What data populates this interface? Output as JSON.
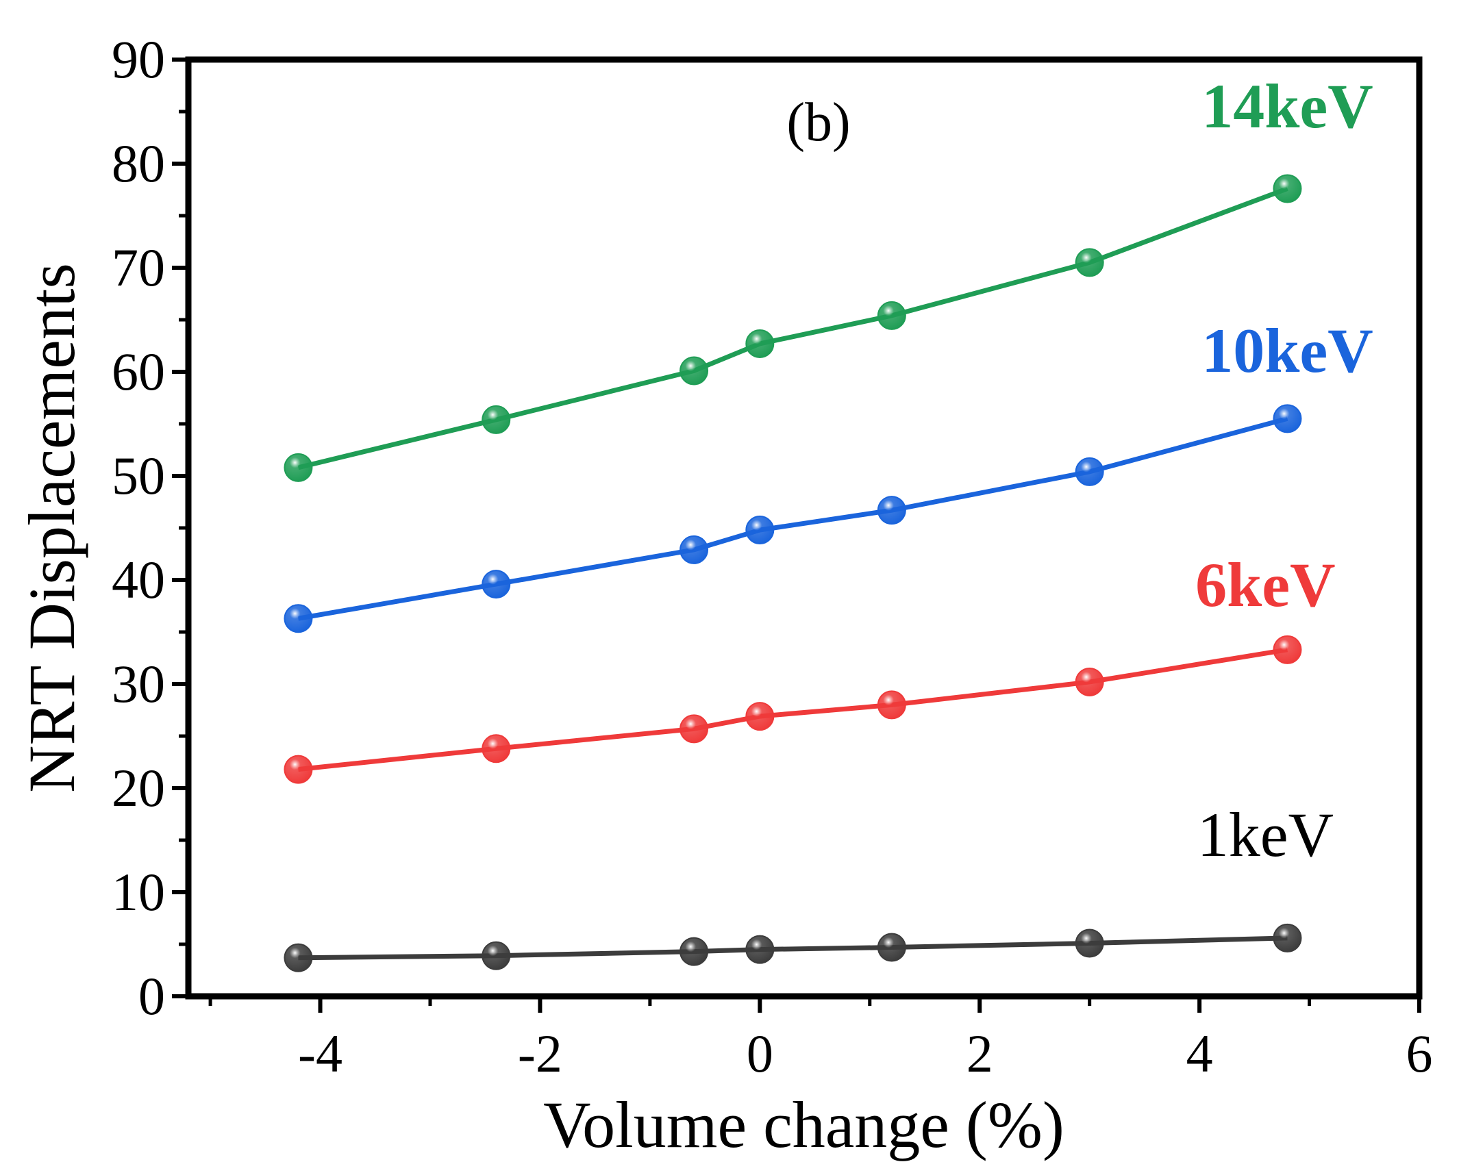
{
  "chart_data": {
    "type": "line",
    "panel_label": "(b)",
    "title": "",
    "xlabel": "Volume change (%)",
    "ylabel": "NRT Displacements",
    "xlim": [
      -5.2,
      6
    ],
    "ylim": [
      0,
      90
    ],
    "xticks": [
      {
        "value": -4,
        "label": "-4"
      },
      {
        "value": -2,
        "label": "-2"
      },
      {
        "value": 0,
        "label": "0"
      },
      {
        "value": 2,
        "label": "2"
      },
      {
        "value": 4,
        "label": "4"
      },
      {
        "value": 6,
        "label": "6"
      }
    ],
    "yticks": [
      {
        "value": 0,
        "label": "0"
      },
      {
        "value": 10,
        "label": "10"
      },
      {
        "value": 20,
        "label": "20"
      },
      {
        "value": 30,
        "label": "30"
      },
      {
        "value": 40,
        "label": "40"
      },
      {
        "value": 50,
        "label": "50"
      },
      {
        "value": 60,
        "label": "60"
      },
      {
        "value": 70,
        "label": "70"
      },
      {
        "value": 80,
        "label": "80"
      },
      {
        "value": 90,
        "label": "90"
      }
    ],
    "x": [
      -4.2,
      -2.4,
      -0.6,
      0,
      1.2,
      3.0,
      4.8
    ],
    "series": [
      {
        "name": "1keV",
        "label": "1keV",
        "color": "#3c3c3c",
        "bold": false,
        "label_anchor": [
          4.6,
          13.5
        ],
        "values": [
          3.7,
          3.9,
          4.3,
          4.5,
          4.7,
          5.1,
          5.6
        ]
      },
      {
        "name": "6keV",
        "label": "6keV",
        "color": "#ef3a3a",
        "bold": true,
        "label_anchor": [
          4.6,
          37.5
        ],
        "values": [
          21.8,
          23.8,
          25.7,
          26.9,
          28.0,
          30.2,
          33.3
        ]
      },
      {
        "name": "10keV",
        "label": "10keV",
        "color": "#1a64dc",
        "bold": true,
        "label_anchor": [
          4.8,
          60.0
        ],
        "values": [
          36.3,
          39.6,
          42.9,
          44.8,
          46.7,
          50.4,
          55.5
        ]
      },
      {
        "name": "14keV",
        "label": "14keV",
        "color": "#1f9d55",
        "bold": true,
        "label_anchor": [
          4.8,
          83.5
        ],
        "values": [
          50.8,
          55.4,
          60.1,
          62.7,
          65.4,
          70.5,
          77.6
        ]
      }
    ],
    "grid": false,
    "legend": "none (inline labels at right)"
  }
}
